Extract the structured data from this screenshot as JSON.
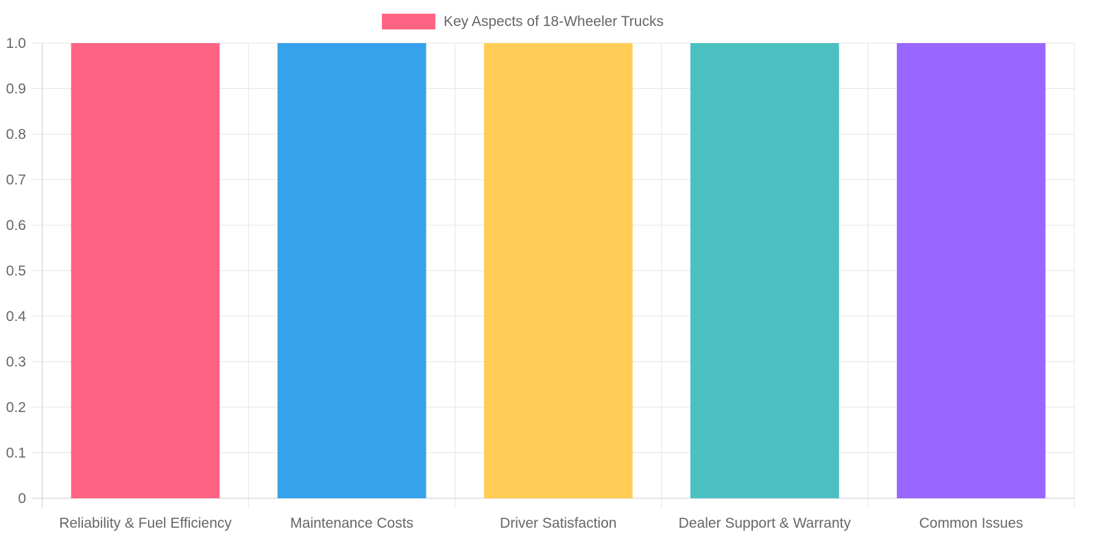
{
  "chart_data": {
    "type": "bar",
    "categories": [
      "Reliability & Fuel Efficiency",
      "Maintenance Costs",
      "Driver Satisfaction",
      "Dealer Support & Warranty",
      "Common Issues"
    ],
    "series": [
      {
        "name": "Key Aspects of 18-Wheeler Trucks",
        "values": [
          1,
          1,
          1,
          1,
          1
        ]
      }
    ],
    "colors": [
      "#ff6384",
      "#36a2eb",
      "#ffcd56",
      "#4bc0c0",
      "#9966ff"
    ],
    "ylim": [
      0,
      1
    ],
    "yticks": [
      "0",
      "0.1",
      "0.2",
      "0.3",
      "0.4",
      "0.5",
      "0.6",
      "0.7",
      "0.8",
      "0.9",
      "1.0"
    ],
    "grid": true,
    "legend_position": "top"
  }
}
